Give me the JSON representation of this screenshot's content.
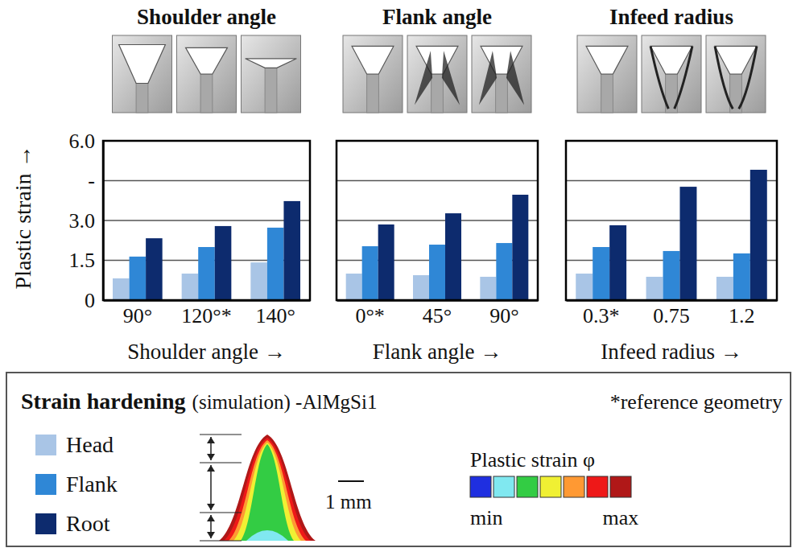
{
  "chart_data": [
    {
      "type": "bar",
      "title": "Shoulder angle",
      "x_label": "Shoulder angle →",
      "y_label": "Plastic strain →",
      "categories": [
        "90°",
        "120°*",
        "140°"
      ],
      "series": [
        {
          "name": "Head",
          "color": "#a9c5e6",
          "values": [
            0.82,
            1.0,
            1.42
          ]
        },
        {
          "name": "Flank",
          "color": "#2f87d6",
          "values": [
            1.64,
            2.0,
            2.73
          ]
        },
        {
          "name": "Root",
          "color": "#0d2b6e",
          "values": [
            2.33,
            2.79,
            3.73
          ]
        }
      ],
      "ylim": [
        0,
        6
      ],
      "yticks": [
        0,
        1.5,
        {
          "value": 3,
          "label": "3.0"
        },
        {
          "value": 4.5,
          "label": "-"
        },
        {
          "value": 6,
          "label": "6.0"
        }
      ],
      "grid": true,
      "legend": "bottom"
    },
    {
      "type": "bar",
      "title": "Flank angle",
      "x_label": "Flank angle →",
      "categories": [
        "0°*",
        "45°",
        "90°"
      ],
      "series": [
        {
          "color": "#a9c5e6",
          "values": [
            1.0,
            0.94,
            0.88
          ]
        },
        {
          "color": "#2f87d6",
          "values": [
            2.03,
            2.09,
            2.15
          ]
        },
        {
          "color": "#0d2b6e",
          "values": [
            2.85,
            3.27,
            3.97
          ]
        }
      ],
      "ylim": [
        0,
        6
      ],
      "yticks": [
        0,
        1.5,
        3,
        4.5,
        6
      ],
      "grid": true,
      "tick_labels": "x"
    },
    {
      "type": "bar",
      "title": "Infeed radius",
      "x_label": "Infeed radius →",
      "categories": [
        "0.3*",
        "0.75",
        "1.2"
      ],
      "series": [
        {
          "color": "#a9c5e6",
          "values": [
            1.0,
            0.88,
            0.88
          ]
        },
        {
          "color": "#2f87d6",
          "values": [
            2.0,
            1.85,
            1.76
          ]
        },
        {
          "color": "#0d2b6e",
          "values": [
            2.82,
            4.27,
            4.91
          ]
        }
      ],
      "ylim": [
        0,
        6
      ],
      "yticks": [
        0,
        1.5,
        3,
        4.5,
        6
      ],
      "grid": true,
      "tick_labels": "x"
    }
  ],
  "legend_box": {
    "title": "Strain hardening",
    "subtitle": "(simulation) -AlMgSi1",
    "note": "*reference geometry",
    "scale_bar": "1 mm",
    "colorbar": {
      "title": "Plastic strain φ",
      "colors": [
        "#1f2fe0",
        "#80e8f0",
        "#33cc44",
        "#f0f033",
        "#ff9933",
        "#ee1818",
        "#b01818"
      ],
      "min_label": "min",
      "max_label": "max"
    }
  }
}
